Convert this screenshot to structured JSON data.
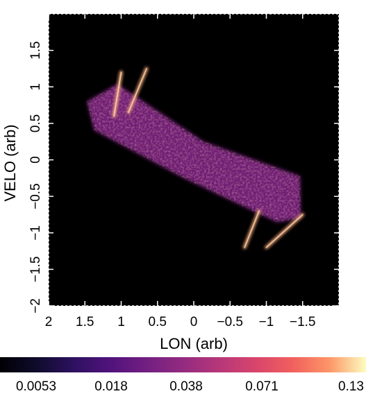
{
  "chart_data": {
    "type": "heatmap",
    "xlabel": "LON (arb)",
    "ylabel": "VELO (arb)",
    "xlim": [
      2,
      -2
    ],
    "ylim": [
      -2,
      2
    ],
    "x_ticks": [
      {
        "value": 2,
        "label": "2"
      },
      {
        "value": 1.5,
        "label": "1.5"
      },
      {
        "value": 1,
        "label": "1"
      },
      {
        "value": 0.5,
        "label": "0.5"
      },
      {
        "value": 0,
        "label": "0"
      },
      {
        "value": -0.5,
        "label": "−0.5"
      },
      {
        "value": -1,
        "label": "−1"
      },
      {
        "value": -1.5,
        "label": "−1.5"
      }
    ],
    "y_ticks": [
      {
        "value": -2,
        "label": "−2"
      },
      {
        "value": -1.5,
        "label": "−1.5"
      },
      {
        "value": -1,
        "label": "−1"
      },
      {
        "value": -0.5,
        "label": "−0.5"
      },
      {
        "value": 0,
        "label": "0"
      },
      {
        "value": 0.5,
        "label": "0.5"
      },
      {
        "value": 1,
        "label": "1"
      },
      {
        "value": 1.5,
        "label": "1.5"
      }
    ],
    "background_color": "#000000",
    "colormap": "magma",
    "colorbar": {
      "orientation": "horizontal",
      "ticks": [
        "0.0053",
        "0.018",
        "0.038",
        "0.071",
        "0.13"
      ]
    },
    "regions": [
      {
        "shape": "bowtie-band",
        "from": [
          1.5,
          0.75
        ],
        "to": [
          -1.5,
          -0.75
        ],
        "center_intensity": 0.45
      },
      {
        "shape": "bright-edge",
        "from": [
          1.0,
          1.2
        ],
        "to": [
          1.1,
          0.6
        ],
        "intensity": 0.95
      },
      {
        "shape": "bright-edge",
        "from": [
          0.65,
          1.25
        ],
        "to": [
          0.9,
          0.65
        ],
        "intensity": 0.9
      },
      {
        "shape": "bright-edge",
        "from": [
          -0.7,
          -1.2
        ],
        "to": [
          -0.9,
          -0.7
        ],
        "intensity": 0.9
      },
      {
        "shape": "bright-edge",
        "from": [
          -1.0,
          -1.2
        ],
        "to": [
          -1.5,
          -0.75
        ],
        "intensity": 0.9
      }
    ]
  }
}
